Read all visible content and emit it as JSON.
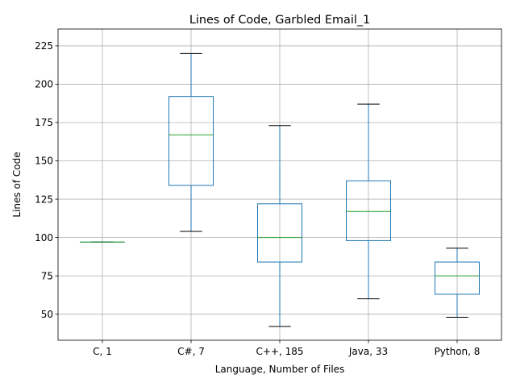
{
  "chart_data": {
    "type": "box",
    "title": "Lines of Code, Garbled Email_1",
    "xlabel": "Language, Number of Files",
    "ylabel": "Lines of Code",
    "ylim": [
      33,
      236
    ],
    "yticks": [
      50,
      75,
      100,
      125,
      150,
      175,
      200,
      225
    ],
    "grid": true,
    "colors": {
      "box": "#1f77b4",
      "median": "#2ca02c",
      "whisker_cap": "#000000",
      "grid": "#b0b0b0"
    },
    "categories": [
      "C, 1",
      "C#, 7",
      "C++, 185",
      "Java, 33",
      "Python, 8"
    ],
    "boxes": [
      {
        "category": "C, 1",
        "whislo": 97,
        "q1": 97,
        "med": 97,
        "q3": 97,
        "whishi": 97
      },
      {
        "category": "C#, 7",
        "whislo": 104,
        "q1": 134,
        "med": 167,
        "q3": 192,
        "whishi": 220
      },
      {
        "category": "C++, 185",
        "whislo": 42,
        "q1": 84,
        "med": 100,
        "q3": 122,
        "whishi": 173
      },
      {
        "category": "Java, 33",
        "whislo": 60,
        "q1": 98,
        "med": 117,
        "q3": 137,
        "whishi": 187
      },
      {
        "category": "Python, 8",
        "whislo": 48,
        "q1": 63,
        "med": 75,
        "q3": 84,
        "whishi": 93
      }
    ]
  }
}
